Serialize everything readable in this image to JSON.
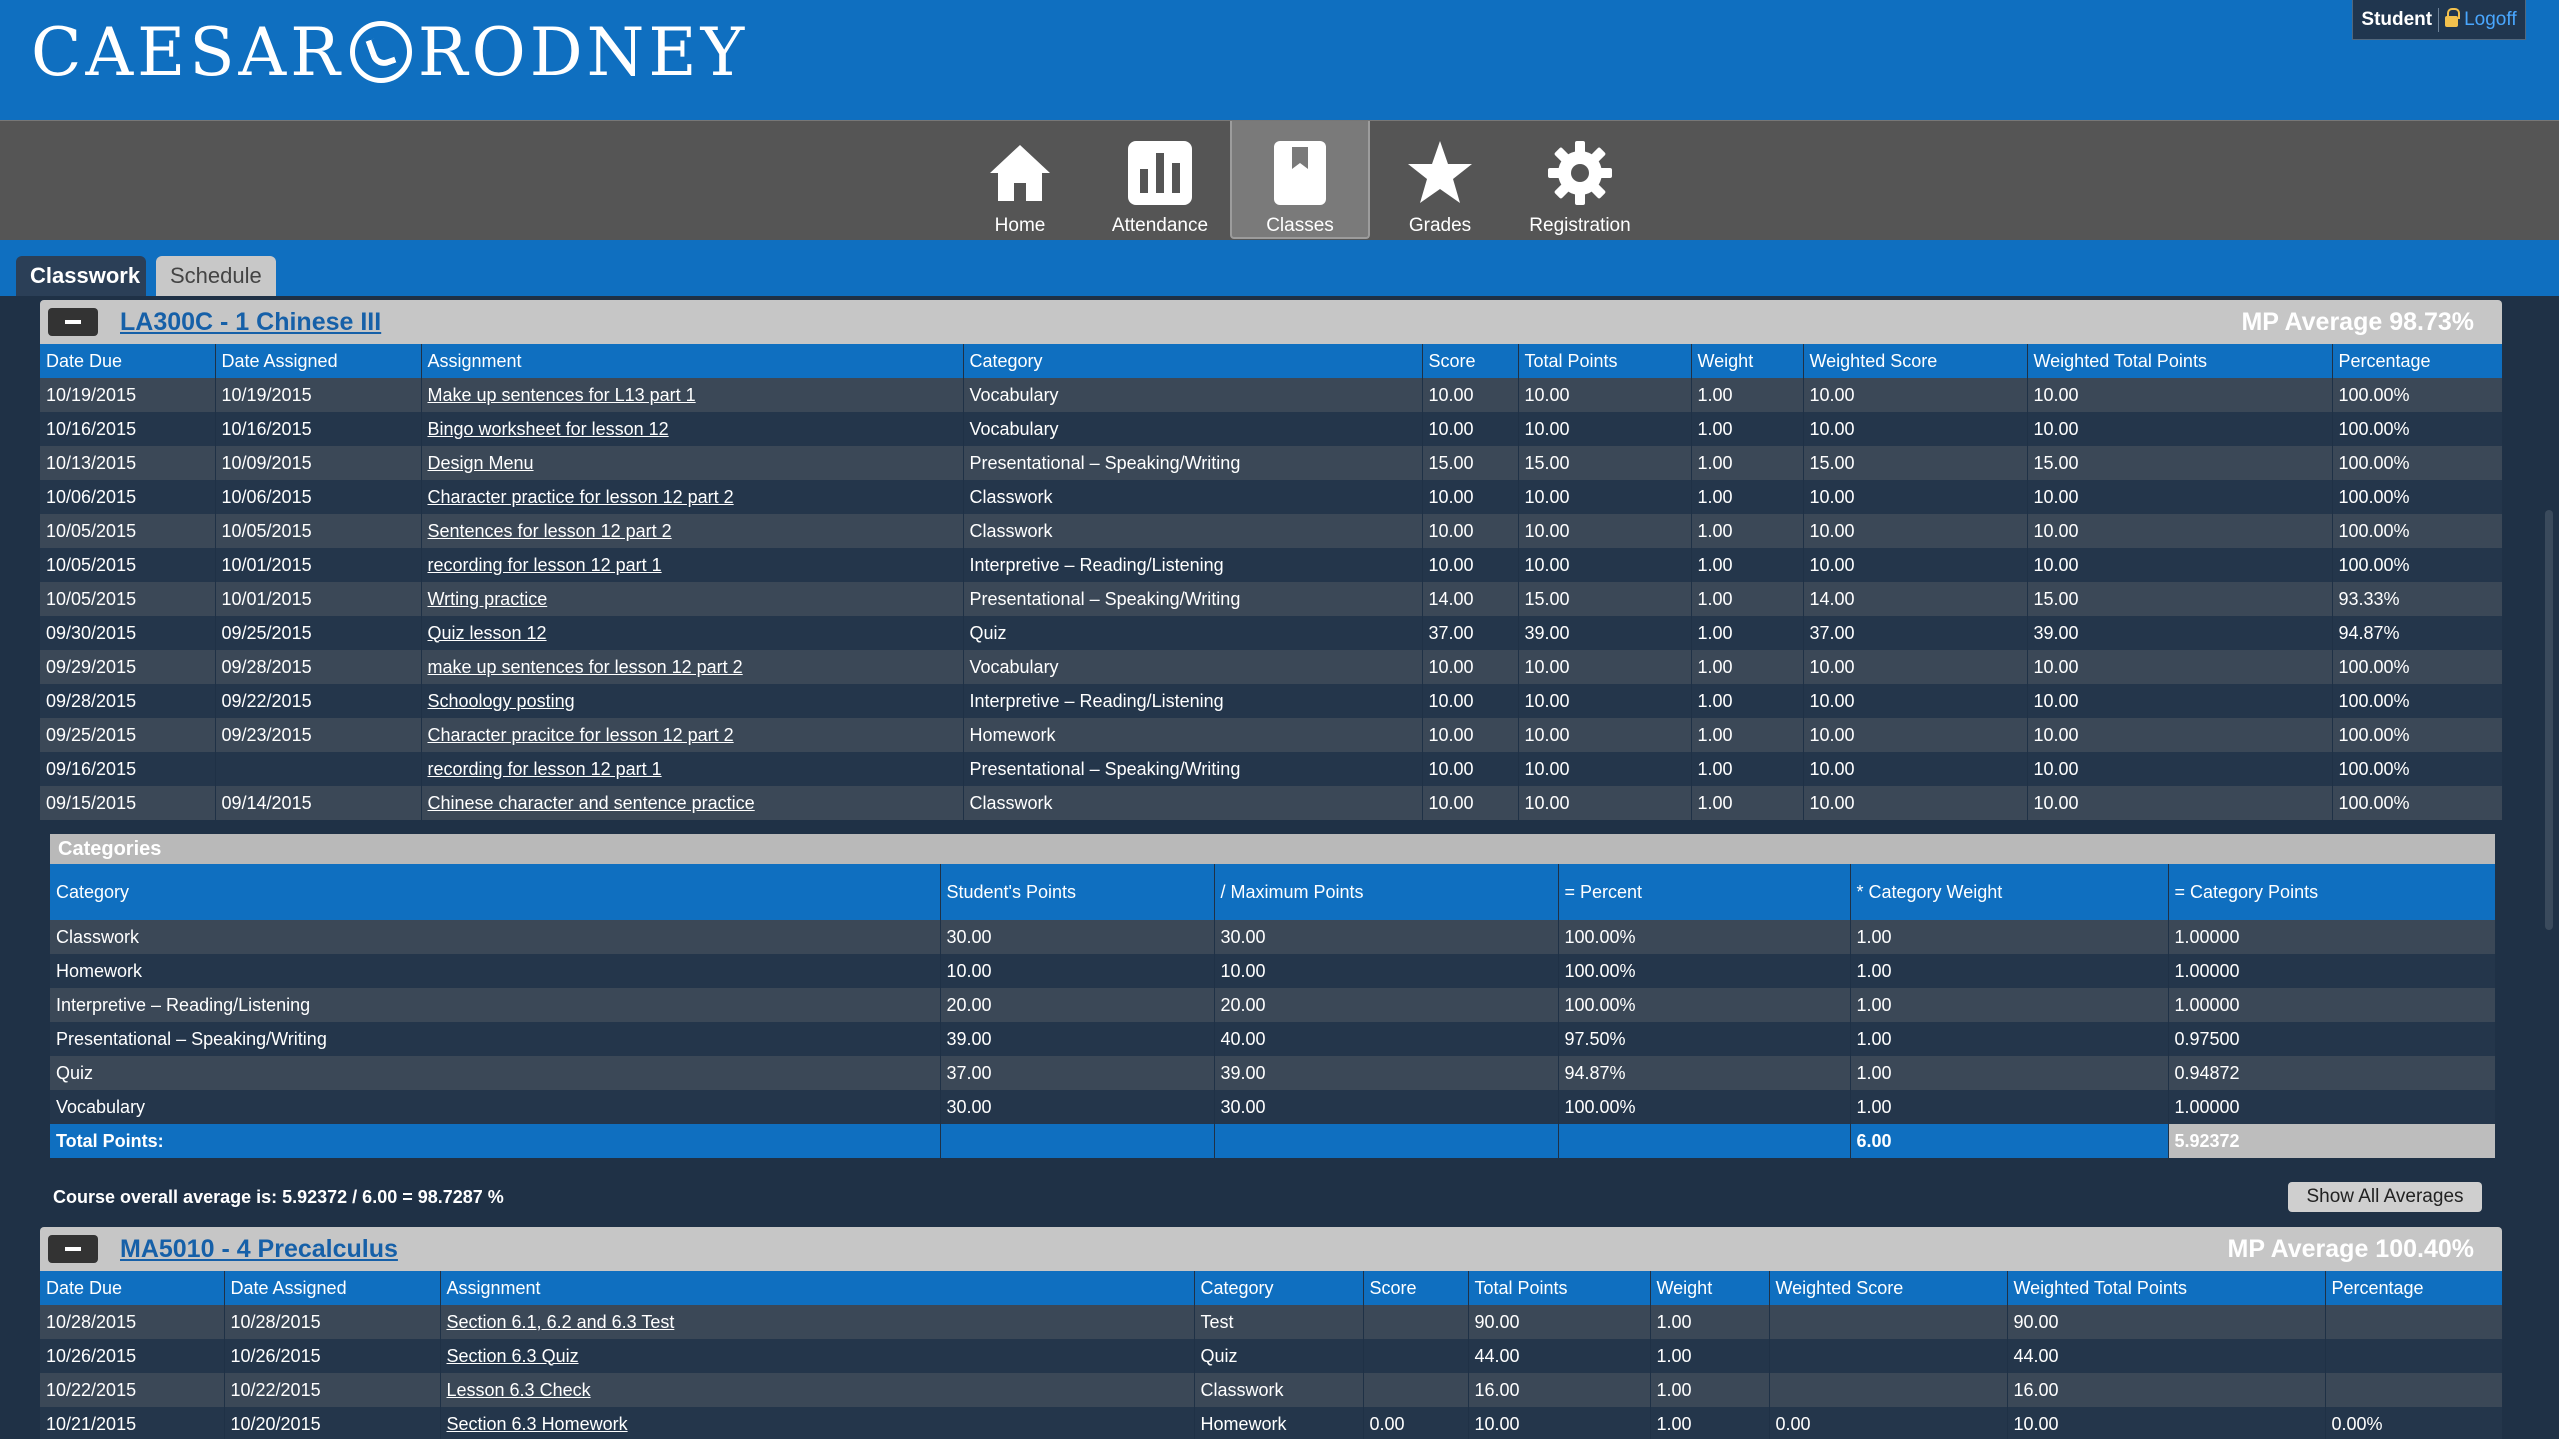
{
  "brand": {
    "logo_left": "CAESAR",
    "logo_right": "RODNEY"
  },
  "user": {
    "role": "Student",
    "logoff": "Logoff"
  },
  "nav": [
    {
      "label": "Home",
      "icon": "home-icon",
      "active": false
    },
    {
      "label": "Attendance",
      "icon": "bar-chart-icon",
      "active": false
    },
    {
      "label": "Classes",
      "icon": "book-icon",
      "active": true
    },
    {
      "label": "Grades",
      "icon": "star-icon",
      "active": false
    },
    {
      "label": "Registration",
      "icon": "gear-icon",
      "active": false
    }
  ],
  "subtabs": {
    "classwork": "Classwork",
    "schedule": "Schedule"
  },
  "courses": [
    {
      "title": "LA300C - 1 Chinese III",
      "mp_average": "MP Average 98.73%",
      "columns": [
        "Date Due",
        "Date Assigned",
        "Assignment",
        "Category",
        "Score",
        "Total Points",
        "Weight",
        "Weighted Score",
        "Weighted Total Points",
        "Percentage"
      ],
      "rows": [
        [
          "10/19/2015",
          "10/19/2015",
          "Make up sentences for L13 part 1",
          "Vocabulary",
          "10.00",
          "10.00",
          "1.00",
          "10.00",
          "10.00",
          "100.00%"
        ],
        [
          "10/16/2015",
          "10/16/2015",
          "Bingo worksheet for lesson 12",
          "Vocabulary",
          "10.00",
          "10.00",
          "1.00",
          "10.00",
          "10.00",
          "100.00%"
        ],
        [
          "10/13/2015",
          "10/09/2015",
          "Design Menu",
          "Presentational – Speaking/Writing",
          "15.00",
          "15.00",
          "1.00",
          "15.00",
          "15.00",
          "100.00%"
        ],
        [
          "10/06/2015",
          "10/06/2015",
          "Character practice for lesson 12 part 2",
          "Classwork",
          "10.00",
          "10.00",
          "1.00",
          "10.00",
          "10.00",
          "100.00%"
        ],
        [
          "10/05/2015",
          "10/05/2015",
          "Sentences for lesson 12 part 2",
          "Classwork",
          "10.00",
          "10.00",
          "1.00",
          "10.00",
          "10.00",
          "100.00%"
        ],
        [
          "10/05/2015",
          "10/01/2015",
          "recording for lesson 12 part 1",
          "Interpretive – Reading/Listening",
          "10.00",
          "10.00",
          "1.00",
          "10.00",
          "10.00",
          "100.00%"
        ],
        [
          "10/05/2015",
          "10/01/2015",
          "Wrting practice",
          "Presentational – Speaking/Writing",
          "14.00",
          "15.00",
          "1.00",
          "14.00",
          "15.00",
          "93.33%"
        ],
        [
          "09/30/2015",
          "09/25/2015",
          "Quiz lesson 12",
          "Quiz",
          "37.00",
          "39.00",
          "1.00",
          "37.00",
          "39.00",
          "94.87%"
        ],
        [
          "09/29/2015",
          "09/28/2015",
          "make up sentences for lesson 12 part 2",
          "Vocabulary",
          "10.00",
          "10.00",
          "1.00",
          "10.00",
          "10.00",
          "100.00%"
        ],
        [
          "09/28/2015",
          "09/22/2015",
          "Schoology posting",
          "Interpretive – Reading/Listening",
          "10.00",
          "10.00",
          "1.00",
          "10.00",
          "10.00",
          "100.00%"
        ],
        [
          "09/25/2015",
          "09/23/2015",
          "Character pracitce for lesson 12 part 2",
          "Homework",
          "10.00",
          "10.00",
          "1.00",
          "10.00",
          "10.00",
          "100.00%"
        ],
        [
          "09/16/2015",
          "",
          "recording for lesson 12 part 1",
          "Presentational – Speaking/Writing",
          "10.00",
          "10.00",
          "1.00",
          "10.00",
          "10.00",
          "100.00%"
        ],
        [
          "09/15/2015",
          "09/14/2015",
          "Chinese character and sentence practice",
          "Classwork",
          "10.00",
          "10.00",
          "1.00",
          "10.00",
          "10.00",
          "100.00%"
        ]
      ]
    },
    {
      "title": "MA5010 - 4 Precalculus",
      "mp_average": "MP Average 100.40%",
      "columns": [
        "Date Due",
        "Date Assigned",
        "Assignment",
        "Category",
        "Score",
        "Total Points",
        "Weight",
        "Weighted Score",
        "Weighted Total Points",
        "Percentage"
      ],
      "rows": [
        [
          "10/28/2015",
          "10/28/2015",
          "Section 6.1, 6.2 and 6.3 Test",
          "Test",
          "",
          "90.00",
          "1.00",
          "",
          "90.00",
          ""
        ],
        [
          "10/26/2015",
          "10/26/2015",
          "Section 6.3 Quiz",
          "Quiz",
          "",
          "44.00",
          "1.00",
          "",
          "44.00",
          ""
        ],
        [
          "10/22/2015",
          "10/22/2015",
          "Lesson 6.3 Check",
          "Classwork",
          "",
          "16.00",
          "1.00",
          "",
          "16.00",
          ""
        ],
        [
          "10/21/2015",
          "10/20/2015",
          "Section 6.3 Homework",
          "Homework",
          "0.00",
          "10.00",
          "1.00",
          "0.00",
          "10.00",
          "0.00%"
        ]
      ]
    }
  ],
  "categories": {
    "title": "Categories",
    "columns": [
      "Category",
      "Student's Points",
      "/ Maximum Points",
      "= Percent",
      "* Category Weight",
      "= Category Points"
    ],
    "rows": [
      [
        "Classwork",
        "30.00",
        "30.00",
        "100.00%",
        "1.00",
        "1.00000"
      ],
      [
        "Homework",
        "10.00",
        "10.00",
        "100.00%",
        "1.00",
        "1.00000"
      ],
      [
        "Interpretive – Reading/Listening",
        "20.00",
        "20.00",
        "100.00%",
        "1.00",
        "1.00000"
      ],
      [
        "Presentational – Speaking/Writing",
        "39.00",
        "40.00",
        "97.50%",
        "1.00",
        "0.97500"
      ],
      [
        "Quiz",
        "37.00",
        "39.00",
        "94.87%",
        "1.00",
        "0.94872"
      ],
      [
        "Vocabulary",
        "30.00",
        "30.00",
        "100.00%",
        "1.00",
        "1.00000"
      ]
    ],
    "total_label": "Total Points:",
    "total_weight": "6.00",
    "total_points": "5.92372"
  },
  "overall_text": "Course overall average is: 5.92372 / 6.00 = 98.7287 %",
  "show_all_averages": "Show All Averages",
  "colors": {
    "header_blue": "#0f6fc0",
    "page_bg": "#1f3146",
    "row_odd": "#3b4857",
    "row_even": "#24364b"
  }
}
